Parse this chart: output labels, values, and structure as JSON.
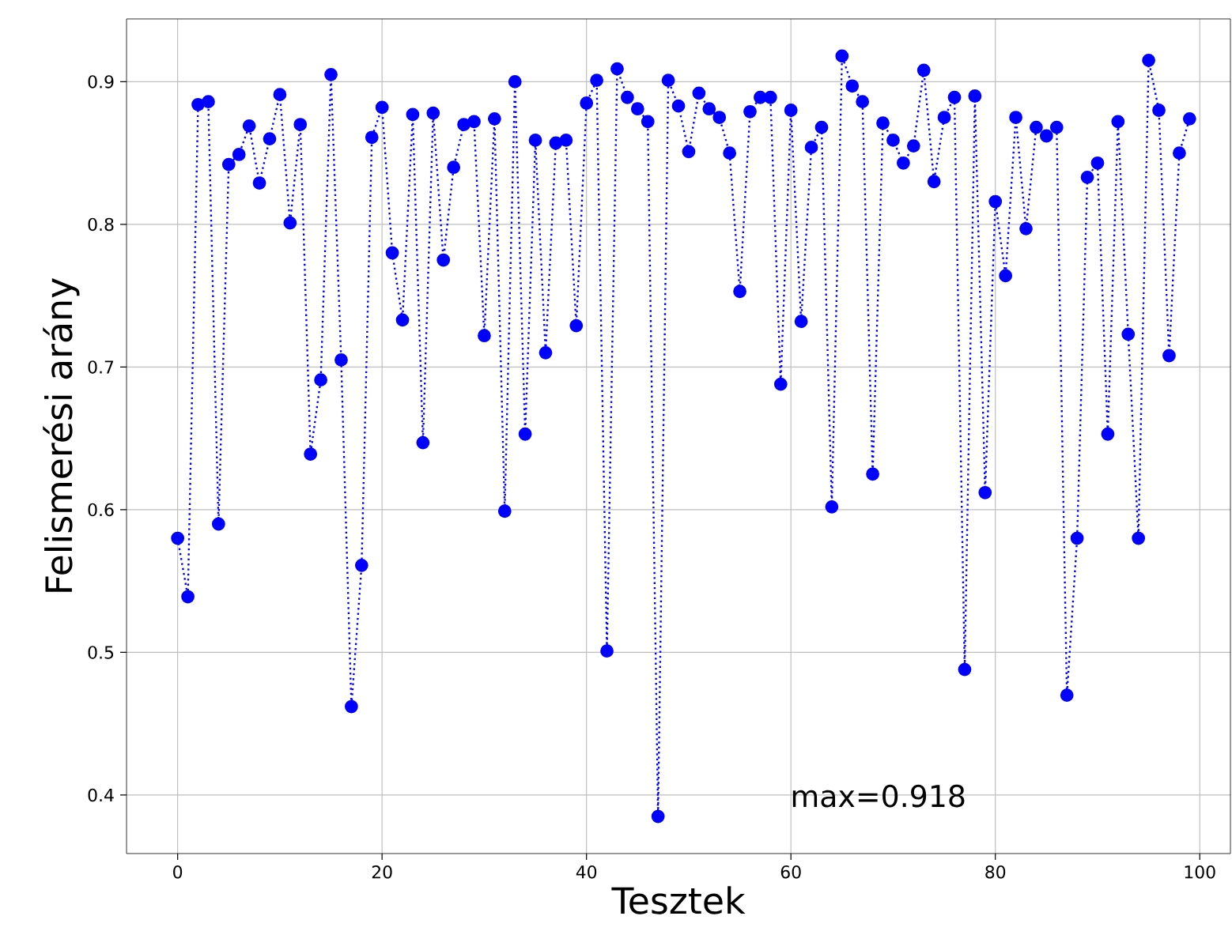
{
  "chart_data": {
    "type": "line",
    "xlabel": "Tesztek",
    "ylabel": "Felismerési arány",
    "x": [
      0,
      1,
      2,
      3,
      4,
      5,
      6,
      7,
      8,
      9,
      10,
      11,
      12,
      13,
      14,
      15,
      16,
      17,
      18,
      19,
      20,
      21,
      22,
      23,
      24,
      25,
      26,
      27,
      28,
      29,
      30,
      31,
      32,
      33,
      34,
      35,
      36,
      37,
      38,
      39,
      40,
      41,
      42,
      43,
      44,
      45,
      46,
      47,
      48,
      49,
      50,
      51,
      52,
      53,
      54,
      55,
      56,
      57,
      58,
      59,
      60,
      61,
      62,
      63,
      64,
      65,
      66,
      67,
      68,
      69,
      70,
      71,
      72,
      73,
      74,
      75,
      76,
      77,
      78,
      79,
      80,
      81,
      82,
      83,
      84,
      85,
      86,
      87,
      88,
      89,
      90,
      91,
      92,
      93,
      94,
      95,
      96,
      97,
      98,
      99
    ],
    "series": [
      {
        "color": "#0000ff",
        "values": [
          0.58,
          0.539,
          0.884,
          0.886,
          0.59,
          0.842,
          0.849,
          0.869,
          0.829,
          0.86,
          0.891,
          0.801,
          0.87,
          0.639,
          0.691,
          0.905,
          0.705,
          0.462,
          0.561,
          0.861,
          0.882,
          0.78,
          0.733,
          0.877,
          0.647,
          0.878,
          0.775,
          0.84,
          0.87,
          0.872,
          0.722,
          0.874,
          0.599,
          0.9,
          0.653,
          0.859,
          0.71,
          0.857,
          0.859,
          0.729,
          0.885,
          0.901,
          0.501,
          0.909,
          0.889,
          0.881,
          0.872,
          0.385,
          0.901,
          0.883,
          0.851,
          0.892,
          0.881,
          0.875,
          0.85,
          0.753,
          0.879,
          0.889,
          0.889,
          0.688,
          0.88,
          0.732,
          0.854,
          0.868,
          0.602,
          0.918,
          0.897,
          0.886,
          0.625,
          0.871,
          0.859,
          0.843,
          0.855,
          0.908,
          0.83,
          0.875,
          0.889,
          0.488,
          0.89,
          0.612,
          0.816,
          0.764,
          0.875,
          0.797,
          0.868,
          0.862,
          0.868,
          0.47,
          0.58,
          0.833,
          0.843,
          0.653,
          0.872,
          0.723,
          0.58,
          0.915,
          0.88,
          0.708,
          0.85,
          0.874
        ]
      }
    ],
    "xlim": [
      -5,
      103
    ],
    "ylim": [
      0.359,
      0.944
    ],
    "xticks": [
      0,
      20,
      40,
      60,
      80,
      100
    ],
    "yticks": [
      0.4,
      0.5,
      0.6,
      0.7,
      0.8,
      0.9
    ],
    "grid": true,
    "marker": "circle",
    "line_style": "dotted",
    "annotations": [
      "max=0.918"
    ]
  }
}
